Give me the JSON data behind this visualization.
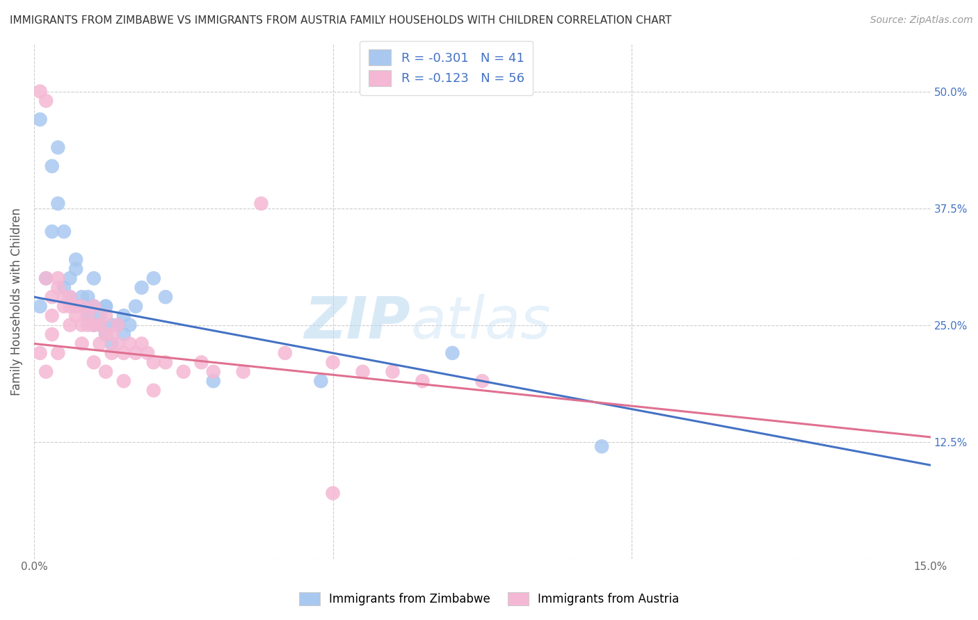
{
  "title": "IMMIGRANTS FROM ZIMBABWE VS IMMIGRANTS FROM AUSTRIA FAMILY HOUSEHOLDS WITH CHILDREN CORRELATION CHART",
  "source": "Source: ZipAtlas.com",
  "ylabel": "Family Households with Children",
  "x_min": 0.0,
  "x_max": 0.15,
  "y_min": 0.0,
  "y_max": 0.55,
  "y_ticks": [
    0.0,
    0.125,
    0.25,
    0.375,
    0.5
  ],
  "y_tick_labels_right": [
    "",
    "12.5%",
    "25.0%",
    "37.5%",
    "50.0%"
  ],
  "x_ticks": [
    0.0,
    0.05,
    0.1,
    0.15
  ],
  "x_tick_labels": [
    "0.0%",
    "",
    "",
    "15.0%"
  ],
  "grid_color": "#cccccc",
  "background_color": "#ffffff",
  "watermark": "ZIPatlas",
  "blue_color": "#a8c8f0",
  "pink_color": "#f4b8d4",
  "blue_line_color": "#4472c4",
  "pink_line_color": "#e07090",
  "label1": "Immigrants from Zimbabwe",
  "label2": "Immigrants from Austria",
  "legend_line1": "R = -0.301   N = 41",
  "legend_line2": "R = -0.123   N = 56",
  "zimbabwe_x": [
    0.001,
    0.002,
    0.003,
    0.004,
    0.004,
    0.005,
    0.006,
    0.006,
    0.007,
    0.007,
    0.008,
    0.008,
    0.009,
    0.009,
    0.009,
    0.01,
    0.01,
    0.011,
    0.011,
    0.012,
    0.012,
    0.013,
    0.013,
    0.014,
    0.015,
    0.016,
    0.017,
    0.018,
    0.02,
    0.022,
    0.001,
    0.003,
    0.005,
    0.007,
    0.01,
    0.012,
    0.015,
    0.03,
    0.048,
    0.07,
    0.095
  ],
  "zimbabwe_y": [
    0.27,
    0.3,
    0.42,
    0.44,
    0.38,
    0.35,
    0.28,
    0.3,
    0.27,
    0.31,
    0.28,
    0.27,
    0.26,
    0.27,
    0.28,
    0.25,
    0.27,
    0.25,
    0.26,
    0.24,
    0.27,
    0.25,
    0.23,
    0.25,
    0.24,
    0.25,
    0.27,
    0.29,
    0.3,
    0.28,
    0.47,
    0.35,
    0.29,
    0.32,
    0.3,
    0.27,
    0.26,
    0.19,
    0.19,
    0.22,
    0.12
  ],
  "austria_x": [
    0.001,
    0.002,
    0.002,
    0.003,
    0.003,
    0.004,
    0.004,
    0.005,
    0.005,
    0.006,
    0.006,
    0.007,
    0.007,
    0.008,
    0.008,
    0.009,
    0.009,
    0.01,
    0.01,
    0.011,
    0.011,
    0.012,
    0.012,
    0.013,
    0.013,
    0.014,
    0.014,
    0.015,
    0.016,
    0.017,
    0.018,
    0.019,
    0.02,
    0.022,
    0.025,
    0.028,
    0.03,
    0.035,
    0.038,
    0.042,
    0.05,
    0.055,
    0.06,
    0.065,
    0.075,
    0.001,
    0.002,
    0.003,
    0.004,
    0.006,
    0.008,
    0.01,
    0.012,
    0.015,
    0.02,
    0.05
  ],
  "austria_y": [
    0.5,
    0.49,
    0.3,
    0.26,
    0.28,
    0.29,
    0.3,
    0.27,
    0.28,
    0.27,
    0.28,
    0.26,
    0.27,
    0.25,
    0.27,
    0.25,
    0.26,
    0.25,
    0.27,
    0.23,
    0.25,
    0.24,
    0.26,
    0.22,
    0.24,
    0.23,
    0.25,
    0.22,
    0.23,
    0.22,
    0.23,
    0.22,
    0.21,
    0.21,
    0.2,
    0.21,
    0.2,
    0.2,
    0.38,
    0.22,
    0.21,
    0.2,
    0.2,
    0.19,
    0.19,
    0.22,
    0.2,
    0.24,
    0.22,
    0.25,
    0.23,
    0.21,
    0.2,
    0.19,
    0.18,
    0.07
  ],
  "blue_regression": [
    0.28,
    0.1
  ],
  "pink_regression": [
    0.23,
    0.13
  ]
}
